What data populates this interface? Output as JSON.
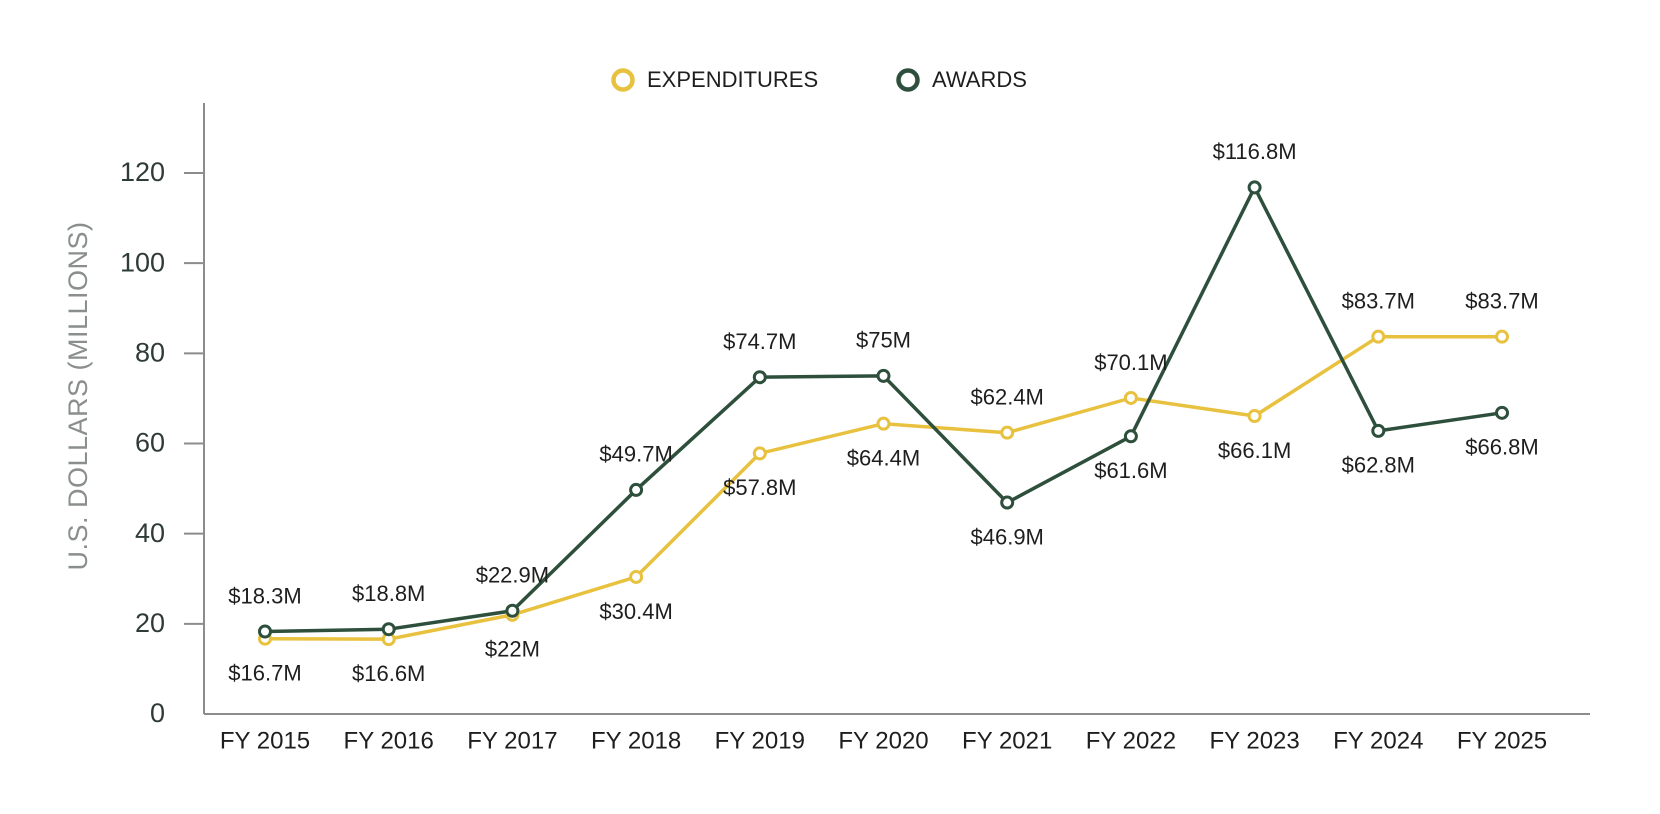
{
  "chart_data": {
    "type": "line",
    "title": "",
    "xlabel": "",
    "ylabel": "U.S. DOLLARS (MILLIONS)",
    "ylim": [
      0,
      130
    ],
    "yticks": [
      0,
      20,
      40,
      60,
      80,
      100,
      120
    ],
    "grid": false,
    "legend_position": "top-center",
    "categories": [
      "FY 2015",
      "FY 2016",
      "FY 2017",
      "FY 2018",
      "FY 2019",
      "FY 2020",
      "FY 2021",
      "FY 2022",
      "FY 2023",
      "FY 2024",
      "FY 2025"
    ],
    "series": [
      {
        "name": "EXPENDITURES",
        "color": "#E8C13E",
        "values": [
          16.7,
          16.6,
          22,
          30.4,
          57.8,
          64.4,
          62.4,
          70.1,
          66.1,
          83.7,
          83.7
        ],
        "labels": [
          "$16.7M",
          "$16.6M",
          "$22M",
          "$30.4M",
          "$57.8M",
          "$64.4M",
          "$62.4M",
          "$70.1M",
          "$66.1M",
          "$83.7M",
          "$83.7M"
        ],
        "label_positions": [
          "below",
          "below",
          "below",
          "below",
          "below",
          "below",
          "above",
          "above",
          "below",
          "above",
          "above"
        ]
      },
      {
        "name": "AWARDS",
        "color": "#2D4F3C",
        "values": [
          18.3,
          18.8,
          22.9,
          49.7,
          74.7,
          75,
          46.9,
          61.6,
          116.8,
          62.8,
          66.8
        ],
        "labels": [
          "$18.3M",
          "$18.8M",
          "$22.9M",
          "$49.7M",
          "$74.7M",
          "$75M",
          "$46.9M",
          "$61.6M",
          "$116.8M",
          "$62.8M",
          "$66.8M"
        ],
        "label_positions": [
          "above",
          "above",
          "above",
          "above",
          "above",
          "above",
          "below",
          "below",
          "above",
          "below",
          "below"
        ]
      }
    ]
  },
  "axis_color": "#8c8c8c"
}
